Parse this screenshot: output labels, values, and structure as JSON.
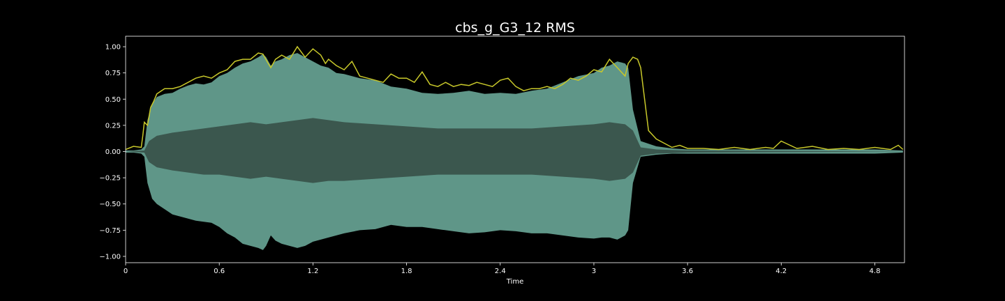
{
  "chart_data": {
    "type": "area",
    "title": "cbs_g_G3_12 RMS",
    "xlabel": "Time",
    "ylabel": "",
    "xlim": [
      0,
      4.99
    ],
    "ylim": [
      -1.06,
      1.1
    ],
    "x_ticks": [
      0,
      0.6,
      1.2,
      1.8,
      2.4,
      3.0,
      3.6,
      4.2,
      4.8
    ],
    "x_tick_labels": [
      "0",
      "0.6",
      "1.2",
      "1.8",
      "2.4",
      "3",
      "3.6",
      "4.2",
      "4.8"
    ],
    "y_ticks": [
      1.0,
      0.75,
      0.5,
      0.25,
      0.0,
      -0.25,
      -0.5,
      -0.75,
      -1.0
    ],
    "y_tick_labels": [
      "1.00",
      "0.75",
      "0.50",
      "0.25",
      "0.00",
      "−0.25",
      "−0.50",
      "−0.75",
      "−1.00"
    ],
    "grid": false,
    "colors": {
      "background": "#000000",
      "waveform_outer": "#5f9688",
      "waveform_inner": "#3b574e",
      "rms_line": "#c8c82a",
      "axes": "#ffffff"
    },
    "series": [
      {
        "kind": "waveform-envelope",
        "x": [
          0,
          0.05,
          0.1,
          0.12,
          0.14,
          0.17,
          0.2,
          0.25,
          0.3,
          0.35,
          0.4,
          0.45,
          0.5,
          0.55,
          0.6,
          0.65,
          0.7,
          0.75,
          0.8,
          0.85,
          0.88,
          0.9,
          0.93,
          0.96,
          1.0,
          1.05,
          1.1,
          1.15,
          1.2,
          1.25,
          1.3,
          1.35,
          1.4,
          1.5,
          1.6,
          1.7,
          1.8,
          1.9,
          2.0,
          2.1,
          2.2,
          2.3,
          2.4,
          2.5,
          2.6,
          2.7,
          2.8,
          2.9,
          3.0,
          3.05,
          3.1,
          3.15,
          3.2,
          3.22,
          3.25,
          3.3,
          3.4,
          3.5,
          3.6,
          3.8,
          4.0,
          4.2,
          4.4,
          4.6,
          4.8,
          4.98
        ],
        "upper": [
          0.01,
          0.01,
          0.02,
          0.05,
          0.3,
          0.45,
          0.52,
          0.55,
          0.56,
          0.6,
          0.63,
          0.65,
          0.64,
          0.66,
          0.72,
          0.75,
          0.8,
          0.84,
          0.86,
          0.9,
          0.93,
          0.9,
          0.82,
          0.86,
          0.88,
          0.92,
          0.94,
          0.9,
          0.86,
          0.82,
          0.8,
          0.75,
          0.74,
          0.7,
          0.68,
          0.62,
          0.6,
          0.56,
          0.55,
          0.56,
          0.58,
          0.55,
          0.56,
          0.55,
          0.58,
          0.6,
          0.66,
          0.72,
          0.75,
          0.8,
          0.82,
          0.86,
          0.84,
          0.8,
          0.4,
          0.1,
          0.05,
          0.03,
          0.02,
          0.02,
          0.02,
          0.02,
          0.02,
          0.02,
          0.02,
          0.01
        ],
        "lower": [
          -0.01,
          -0.01,
          -0.02,
          -0.05,
          -0.3,
          -0.45,
          -0.5,
          -0.55,
          -0.6,
          -0.62,
          -0.64,
          -0.66,
          -0.67,
          -0.68,
          -0.72,
          -0.78,
          -0.82,
          -0.88,
          -0.9,
          -0.92,
          -0.94,
          -0.9,
          -0.8,
          -0.85,
          -0.88,
          -0.9,
          -0.92,
          -0.9,
          -0.86,
          -0.84,
          -0.82,
          -0.8,
          -0.78,
          -0.75,
          -0.74,
          -0.7,
          -0.72,
          -0.72,
          -0.74,
          -0.76,
          -0.78,
          -0.77,
          -0.75,
          -0.76,
          -0.78,
          -0.78,
          -0.8,
          -0.82,
          -0.83,
          -0.82,
          -0.82,
          -0.84,
          -0.8,
          -0.75,
          -0.3,
          -0.05,
          -0.03,
          -0.02,
          -0.02,
          -0.02,
          -0.02,
          -0.02,
          -0.02,
          -0.02,
          -0.02,
          -0.01
        ]
      },
      {
        "kind": "waveform-core",
        "x": [
          0,
          0.12,
          0.15,
          0.2,
          0.3,
          0.4,
          0.5,
          0.6,
          0.7,
          0.8,
          0.9,
          1.0,
          1.1,
          1.2,
          1.3,
          1.4,
          1.6,
          1.8,
          2.0,
          2.2,
          2.4,
          2.6,
          2.8,
          3.0,
          3.1,
          3.2,
          3.25,
          3.3,
          3.4,
          3.6,
          4.98
        ],
        "upper": [
          0.0,
          0.01,
          0.1,
          0.15,
          0.18,
          0.2,
          0.22,
          0.24,
          0.26,
          0.28,
          0.26,
          0.28,
          0.3,
          0.32,
          0.3,
          0.28,
          0.26,
          0.24,
          0.22,
          0.22,
          0.22,
          0.22,
          0.24,
          0.26,
          0.28,
          0.26,
          0.2,
          0.04,
          0.02,
          0.01,
          0.0
        ],
        "lower": [
          0.0,
          -0.01,
          -0.1,
          -0.15,
          -0.18,
          -0.2,
          -0.22,
          -0.22,
          -0.24,
          -0.26,
          -0.24,
          -0.26,
          -0.28,
          -0.3,
          -0.28,
          -0.28,
          -0.26,
          -0.24,
          -0.22,
          -0.22,
          -0.22,
          -0.22,
          -0.24,
          -0.26,
          -0.28,
          -0.26,
          -0.2,
          -0.04,
          -0.02,
          -0.01,
          0.0
        ]
      },
      {
        "kind": "rms-line",
        "x": [
          0,
          0.05,
          0.1,
          0.11,
          0.12,
          0.14,
          0.16,
          0.18,
          0.2,
          0.25,
          0.3,
          0.35,
          0.4,
          0.45,
          0.5,
          0.55,
          0.6,
          0.65,
          0.7,
          0.75,
          0.8,
          0.85,
          0.88,
          0.91,
          0.93,
          0.96,
          1.0,
          1.05,
          1.1,
          1.15,
          1.2,
          1.25,
          1.28,
          1.3,
          1.35,
          1.4,
          1.45,
          1.5,
          1.55,
          1.6,
          1.65,
          1.7,
          1.75,
          1.8,
          1.85,
          1.9,
          1.95,
          2.0,
          2.05,
          2.1,
          2.15,
          2.2,
          2.25,
          2.3,
          2.35,
          2.4,
          2.45,
          2.5,
          2.55,
          2.6,
          2.65,
          2.7,
          2.75,
          2.8,
          2.85,
          2.9,
          2.95,
          3.0,
          3.05,
          3.1,
          3.15,
          3.2,
          3.22,
          3.25,
          3.28,
          3.3,
          3.35,
          3.4,
          3.45,
          3.5,
          3.55,
          3.6,
          3.7,
          3.8,
          3.9,
          4.0,
          4.1,
          4.15,
          4.2,
          4.3,
          4.4,
          4.5,
          4.6,
          4.7,
          4.8,
          4.9,
          4.95,
          4.98
        ],
        "y": [
          0.02,
          0.05,
          0.04,
          0.15,
          0.28,
          0.25,
          0.42,
          0.48,
          0.55,
          0.6,
          0.6,
          0.62,
          0.66,
          0.7,
          0.72,
          0.7,
          0.75,
          0.78,
          0.86,
          0.88,
          0.88,
          0.94,
          0.93,
          0.85,
          0.8,
          0.88,
          0.92,
          0.88,
          1.0,
          0.9,
          0.98,
          0.92,
          0.84,
          0.88,
          0.82,
          0.78,
          0.86,
          0.72,
          0.7,
          0.68,
          0.66,
          0.74,
          0.7,
          0.7,
          0.66,
          0.76,
          0.64,
          0.62,
          0.66,
          0.62,
          0.64,
          0.63,
          0.66,
          0.64,
          0.62,
          0.68,
          0.7,
          0.62,
          0.58,
          0.6,
          0.6,
          0.62,
          0.6,
          0.64,
          0.7,
          0.68,
          0.72,
          0.78,
          0.76,
          0.88,
          0.8,
          0.72,
          0.84,
          0.9,
          0.88,
          0.8,
          0.2,
          0.12,
          0.08,
          0.04,
          0.06,
          0.03,
          0.03,
          0.02,
          0.04,
          0.02,
          0.04,
          0.03,
          0.1,
          0.03,
          0.05,
          0.02,
          0.03,
          0.02,
          0.04,
          0.02,
          0.06,
          0.02
        ]
      }
    ]
  }
}
